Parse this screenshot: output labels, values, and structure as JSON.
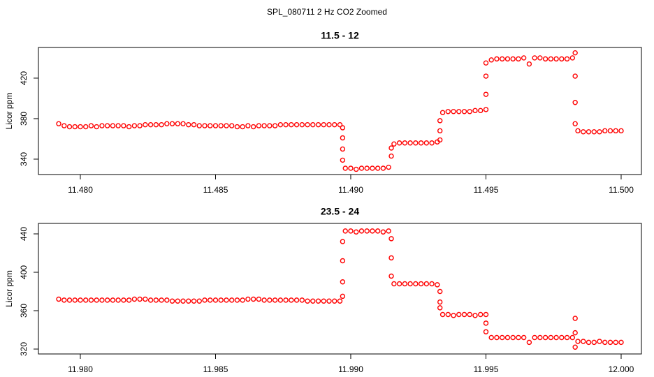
{
  "title": "SPL_080711  2 Hz CO2 Zoomed",
  "chart_data": [
    {
      "type": "scatter",
      "title": "11.5 - 12",
      "y_label": "Licor ppm",
      "color": "#ff0000",
      "grid": false,
      "xlim": [
        11.47845,
        11.50075
      ],
      "ylim": [
        324.8,
        450.3
      ],
      "xticks": [
        {
          "value": 11.48,
          "label": "11.480"
        },
        {
          "value": 11.485,
          "label": "11.485"
        },
        {
          "value": 11.49,
          "label": "11.490"
        },
        {
          "value": 11.495,
          "label": "11.495"
        },
        {
          "value": 11.5,
          "label": "11.500"
        }
      ],
      "yticks": [
        340,
        380,
        420
      ],
      "x": [
        11.4792,
        11.4794,
        11.4796,
        11.4798,
        11.48,
        11.4802,
        11.4804,
        11.4806,
        11.4808,
        11.481,
        11.4812,
        11.4814,
        11.4816,
        11.4818,
        11.482,
        11.4822,
        11.4824,
        11.4826,
        11.4828,
        11.483,
        11.4832,
        11.4834,
        11.4836,
        11.4838,
        11.484,
        11.4842,
        11.4844,
        11.4846,
        11.4848,
        11.485,
        11.4852,
        11.4854,
        11.4856,
        11.4858,
        11.486,
        11.4862,
        11.4864,
        11.4866,
        11.4868,
        11.487,
        11.4872,
        11.4874,
        11.4876,
        11.4878,
        11.488,
        11.4882,
        11.4884,
        11.4886,
        11.4888,
        11.489,
        11.4892,
        11.4894,
        11.4896,
        11.4897,
        11.4897,
        11.4897,
        11.4897,
        11.4898,
        11.49,
        11.4902,
        11.4904,
        11.4906,
        11.4908,
        11.491,
        11.4912,
        11.4914,
        11.4915,
        11.4915,
        11.4916,
        11.4918,
        11.492,
        11.4922,
        11.4924,
        11.4926,
        11.4928,
        11.493,
        11.4932,
        11.4933,
        11.4933,
        11.4933,
        11.4934,
        11.4936,
        11.4938,
        11.494,
        11.4942,
        11.4944,
        11.4946,
        11.4948,
        11.495,
        11.495,
        11.495,
        11.495,
        11.4952,
        11.4954,
        11.4956,
        11.4958,
        11.496,
        11.4962,
        11.4964,
        11.4966,
        11.4968,
        11.497,
        11.4972,
        11.4974,
        11.4976,
        11.4978,
        11.498,
        11.4982,
        11.4983,
        11.4983,
        11.4983,
        11.4983,
        11.4984,
        11.4986,
        11.4988,
        11.499,
        11.4992,
        11.4994,
        11.4996,
        11.4998,
        11.5
      ],
      "values": [
        375,
        373,
        372,
        372,
        372,
        372,
        373,
        372,
        373,
        373,
        373,
        373,
        373,
        372,
        373,
        373,
        374,
        374,
        374,
        374,
        375,
        375,
        375,
        375,
        374,
        374,
        373,
        373,
        373,
        373,
        373,
        373,
        373,
        372,
        372,
        373,
        372,
        373,
        373,
        373,
        373,
        374,
        374,
        374,
        374,
        374,
        374,
        374,
        374,
        374,
        374,
        374,
        374,
        371,
        361,
        350,
        339,
        331,
        331,
        330,
        331,
        331,
        331,
        331,
        331,
        332,
        343,
        351,
        355,
        356,
        356,
        356,
        356,
        356,
        356,
        356,
        357,
        359,
        368,
        378,
        386,
        387,
        387,
        387,
        387,
        387,
        388,
        388,
        389,
        404,
        422,
        435,
        438,
        439,
        439,
        439,
        439,
        439,
        440,
        434,
        440,
        440,
        439,
        439,
        439,
        439,
        439,
        440,
        445,
        422,
        396,
        375,
        368,
        367,
        367,
        367,
        367,
        368,
        368,
        368,
        368
      ]
    },
    {
      "type": "scatter",
      "title": "23.5 - 24",
      "y_label": "Licor ppm",
      "color": "#ff0000",
      "grid": false,
      "xlim": [
        11.97845,
        12.00075
      ],
      "ylim": [
        314.9,
        450.9
      ],
      "xticks": [
        {
          "value": 11.98,
          "label": "11.980"
        },
        {
          "value": 11.985,
          "label": "11.985"
        },
        {
          "value": 11.99,
          "label": "11.990"
        },
        {
          "value": 11.995,
          "label": "11.995"
        },
        {
          "value": 12.0,
          "label": "12.000"
        }
      ],
      "yticks": [
        320,
        360,
        400,
        440
      ],
      "x": [
        11.9792,
        11.9794,
        11.9796,
        11.9798,
        11.98,
        11.9802,
        11.9804,
        11.9806,
        11.9808,
        11.981,
        11.9812,
        11.9814,
        11.9816,
        11.9818,
        11.982,
        11.9822,
        11.9824,
        11.9826,
        11.9828,
        11.983,
        11.9832,
        11.9834,
        11.9836,
        11.9838,
        11.984,
        11.9842,
        11.9844,
        11.9846,
        11.9848,
        11.985,
        11.9852,
        11.9854,
        11.9856,
        11.9858,
        11.986,
        11.9862,
        11.9864,
        11.9866,
        11.9868,
        11.987,
        11.9872,
        11.9874,
        11.9876,
        11.9878,
        11.988,
        11.9882,
        11.9884,
        11.9886,
        11.9888,
        11.989,
        11.9892,
        11.9894,
        11.9896,
        11.9897,
        11.9897,
        11.9897,
        11.9897,
        11.9898,
        11.99,
        11.9902,
        11.9904,
        11.9906,
        11.9908,
        11.991,
        11.9912,
        11.9914,
        11.9915,
        11.9915,
        11.9915,
        11.9916,
        11.9918,
        11.992,
        11.9922,
        11.9924,
        11.9926,
        11.9928,
        11.993,
        11.9932,
        11.9933,
        11.9933,
        11.9933,
        11.9934,
        11.9936,
        11.9938,
        11.994,
        11.9942,
        11.9944,
        11.9946,
        11.9948,
        11.995,
        11.995,
        11.995,
        11.9952,
        11.9954,
        11.9956,
        11.9958,
        11.996,
        11.9962,
        11.9964,
        11.9966,
        11.9968,
        11.997,
        11.9972,
        11.9974,
        11.9976,
        11.9978,
        11.998,
        11.9982,
        11.9983,
        11.9983,
        11.9983,
        11.9984,
        11.9986,
        11.9988,
        11.999,
        11.9992,
        11.9994,
        11.9996,
        11.9998,
        12.0
      ],
      "values": [
        372,
        371,
        371,
        371,
        371,
        371,
        371,
        371,
        371,
        371,
        371,
        371,
        371,
        371,
        372,
        372,
        372,
        371,
        371,
        371,
        371,
        370,
        370,
        370,
        370,
        370,
        370,
        371,
        371,
        371,
        371,
        371,
        371,
        371,
        371,
        372,
        372,
        372,
        371,
        371,
        371,
        371,
        371,
        371,
        371,
        371,
        370,
        370,
        370,
        370,
        370,
        370,
        370,
        375,
        390,
        412,
        432,
        443,
        443,
        442,
        443,
        443,
        443,
        443,
        442,
        443,
        435,
        415,
        396,
        388,
        388,
        388,
        388,
        388,
        388,
        388,
        388,
        387,
        380,
        369,
        363,
        356,
        356,
        355,
        356,
        356,
        356,
        355,
        356,
        356,
        347,
        338,
        332,
        332,
        332,
        332,
        332,
        332,
        332,
        327,
        332,
        332,
        332,
        332,
        332,
        332,
        332,
        332,
        352,
        337,
        322,
        328,
        328,
        327,
        327,
        328,
        327,
        327,
        327,
        327
      ]
    }
  ]
}
